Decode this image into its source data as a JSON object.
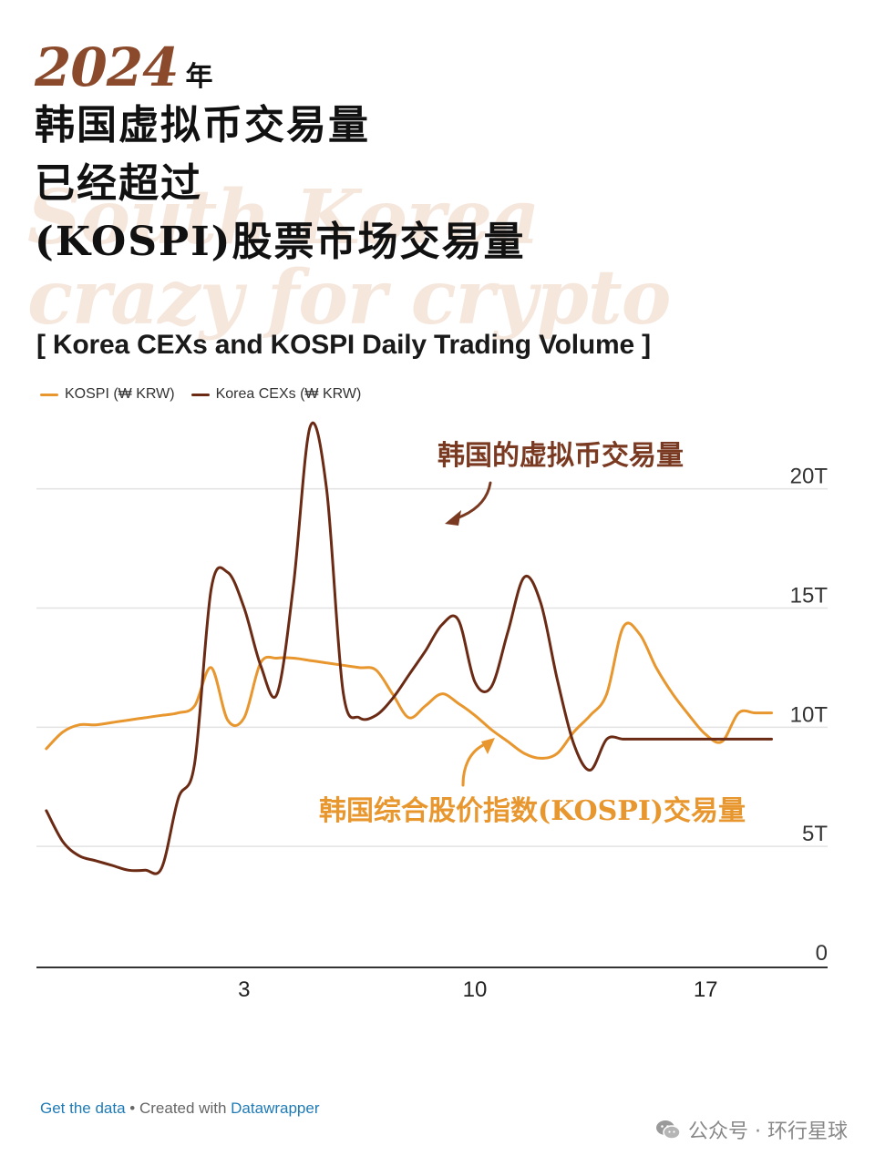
{
  "hero": {
    "year": "2024",
    "year_suffix": "年",
    "line1": "韩国虚拟币交易量",
    "line2": "已经超过",
    "line3": "(KOSPI)股票市场交易量",
    "watermark_line1": "South Korea",
    "watermark_line2": "crazy for crypto"
  },
  "colors": {
    "kospi": "#e8962e",
    "cex": "#6b2a14",
    "accent_title": "#8b4a2b",
    "link": "#1f7bb6"
  },
  "footer": {
    "get_data": "Get the data",
    "separator": " • ",
    "created_with": "Created with ",
    "tool": "Datawrapper"
  },
  "wechat": {
    "icon": "wechat-icon",
    "label": "公众号 · 环行星球"
  },
  "chart_data": {
    "type": "line",
    "title": "[ Korea CEXs and KOSPI Daily Trading Volume ]",
    "legend_position": "top-left",
    "grid": true,
    "x": [
      -3,
      -2.5,
      -2,
      -1.5,
      -1,
      -0.5,
      0,
      0.5,
      1,
      1.5,
      2,
      2.5,
      3,
      3.5,
      4,
      4.5,
      5,
      5.5,
      6,
      6.5,
      7,
      7.5,
      8,
      8.5,
      9,
      9.5,
      10,
      10.5,
      11,
      11.5,
      12,
      12.5,
      13,
      13.5,
      14,
      14.5,
      15,
      15.5,
      16,
      16.5,
      17,
      17.5,
      18,
      18.5,
      19
    ],
    "x_ticks": [
      3,
      10,
      17
    ],
    "x_tick_labels": [
      "3",
      "10",
      "17"
    ],
    "xlim": [
      -3.3,
      20.7
    ],
    "y_ticks": [
      0,
      5,
      10,
      15,
      20
    ],
    "y_tick_labels": [
      "0",
      "5T",
      "10T",
      "15T",
      "20T"
    ],
    "ylim": [
      0,
      24
    ],
    "series": [
      {
        "name": "KOSPI (₩ KRW)",
        "color": "#e8962e",
        "values": [
          9.1,
          9.8,
          10.1,
          10.1,
          10.2,
          10.3,
          10.4,
          10.5,
          10.6,
          10.9,
          12.5,
          10.3,
          10.4,
          12.7,
          12.9,
          12.9,
          12.8,
          12.7,
          12.6,
          12.5,
          12.4,
          11.4,
          10.4,
          10.9,
          11.4,
          11.0,
          10.5,
          9.9,
          9.4,
          8.9,
          8.7,
          8.9,
          9.8,
          10.5,
          11.4,
          14.2,
          13.9,
          12.5,
          11.4,
          10.5,
          9.7,
          9.4,
          10.6,
          10.6,
          10.6
        ]
      },
      {
        "name": "Korea CEXs (₩ KRW)",
        "color": "#6b2a14",
        "values": [
          6.5,
          5.2,
          4.6,
          4.4,
          4.2,
          4.0,
          4.0,
          4.1,
          7.0,
          8.5,
          15.8,
          16.5,
          15.0,
          12.6,
          11.4,
          16.0,
          22.6,
          20.0,
          11.5,
          10.4,
          10.5,
          11.2,
          12.2,
          13.2,
          14.3,
          14.5,
          11.9,
          11.7,
          14.0,
          16.3,
          15.2,
          12.0,
          9.3,
          8.2,
          9.5,
          9.5,
          9.5,
          9.5,
          9.5,
          9.5,
          9.5,
          9.5,
          9.5,
          9.5,
          9.5
        ]
      }
    ],
    "annotations": [
      {
        "text": "韩国的虚拟币交易量",
        "series": "Korea CEXs (₩ KRW)"
      },
      {
        "text": "韩国综合股价指数(KOSPI)交易量",
        "series": "KOSPI (₩ KRW)"
      }
    ]
  }
}
